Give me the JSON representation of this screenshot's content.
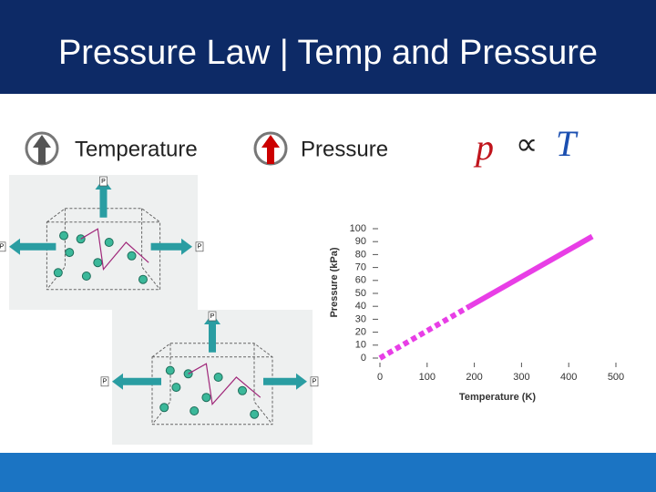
{
  "header": {
    "title": "Pressure Law | Temp and Pressure"
  },
  "labels": {
    "left": "Temperature",
    "right": "Pressure"
  },
  "formula": {
    "left": "p",
    "symbol": "∝",
    "right": "T"
  },
  "figures": [
    {
      "arrow_labels": [
        "P",
        "P",
        "P"
      ]
    },
    {
      "arrow_labels": [
        "P",
        "P",
        "P"
      ]
    }
  ],
  "chart_data": {
    "type": "line",
    "xlabel": "Temperature (K)",
    "ylabel": "Pressure (kPa)",
    "xlim": [
      0,
      500
    ],
    "xticks": [
      0,
      100,
      200,
      300,
      400,
      500
    ],
    "ylim": [
      0,
      100
    ],
    "yticks": [
      0,
      10,
      20,
      30,
      40,
      50,
      60,
      70,
      80,
      90,
      100
    ],
    "series": [
      {
        "color": "#e83ee6",
        "dashed": true,
        "x": [
          0,
          190
        ],
        "values": [
          0,
          40
        ]
      },
      {
        "color": "#e83ee6",
        "dashed": false,
        "x": [
          190,
          450
        ],
        "values": [
          40,
          94
        ]
      }
    ]
  }
}
